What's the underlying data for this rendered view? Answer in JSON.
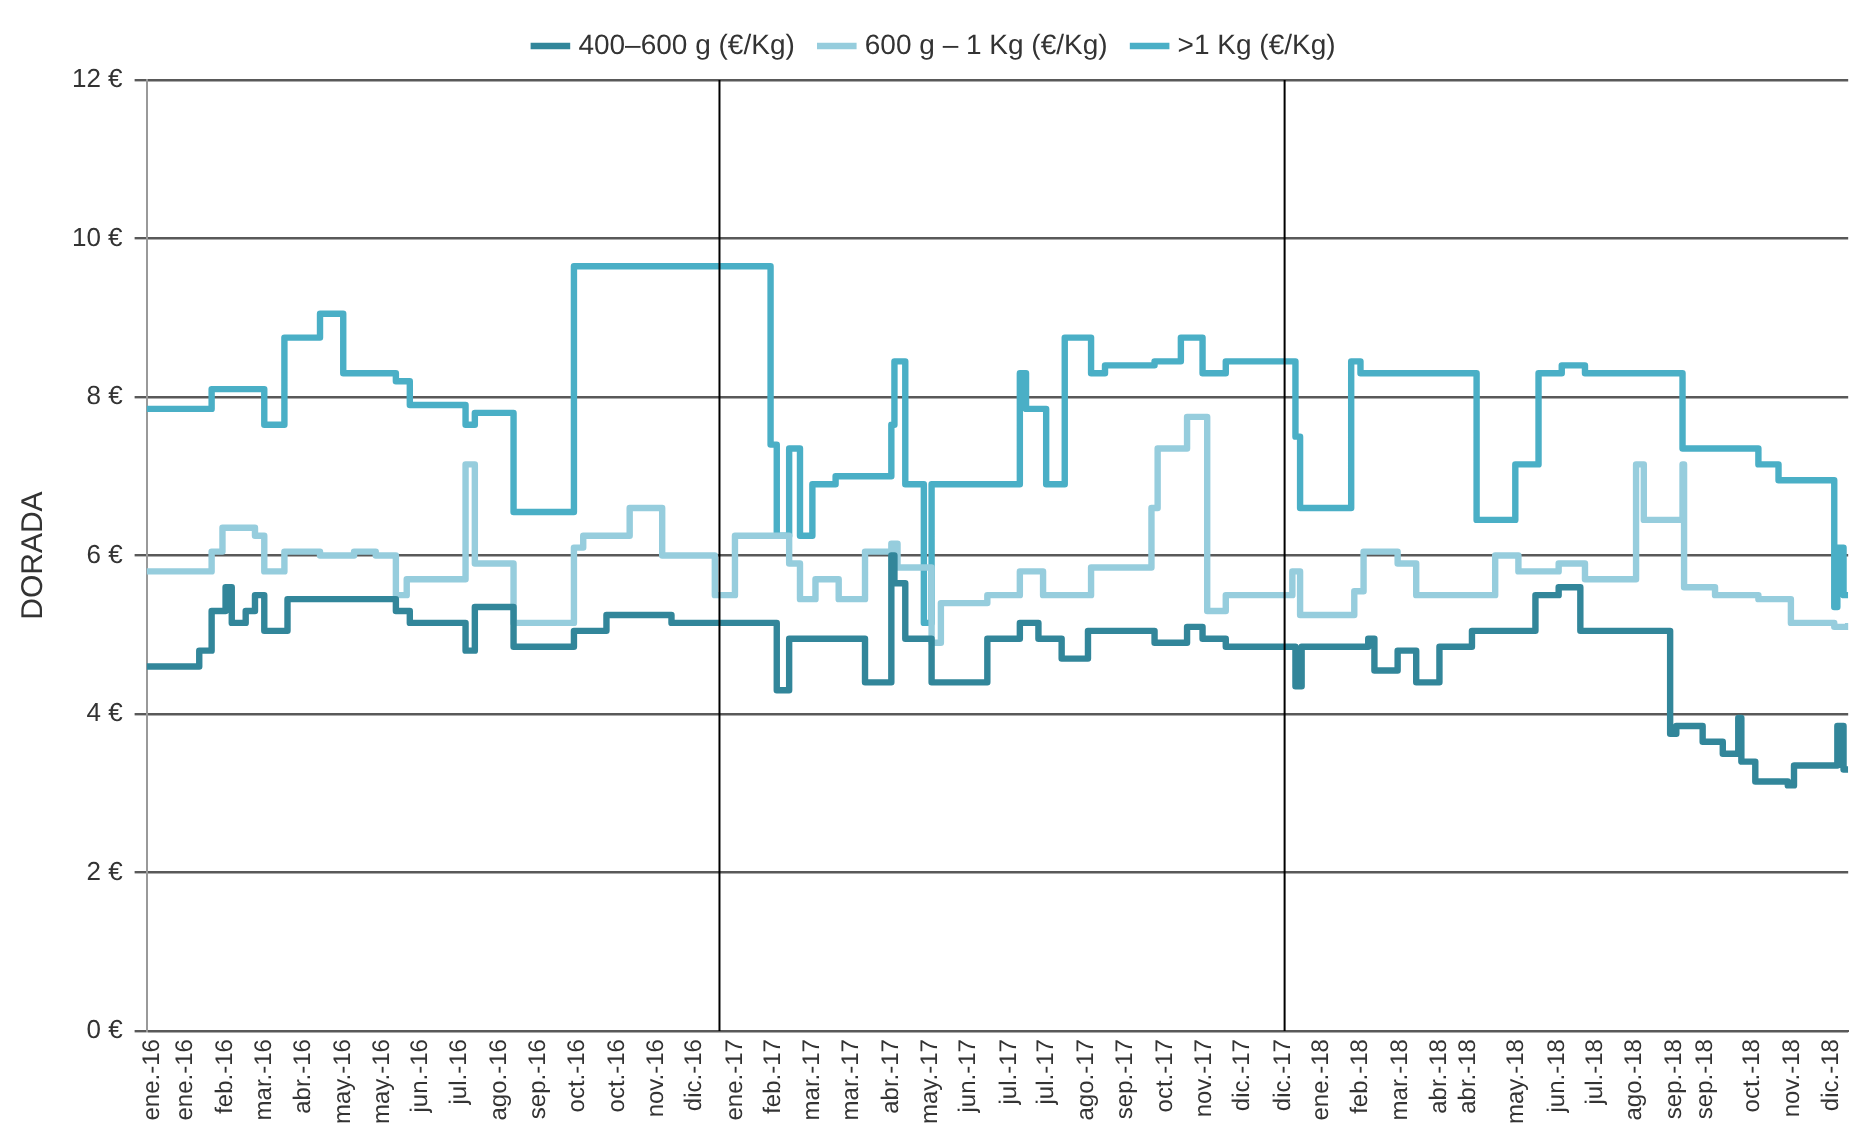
{
  "chart_data": {
    "type": "step",
    "ylabel": "DORADA",
    "legend": "top",
    "grid": "y",
    "xlim": [
      "2015-12-28",
      "2018-12-31"
    ],
    "ylim": [
      0,
      12
    ],
    "yticks": [
      {
        "value": 0,
        "label": "0 €"
      },
      {
        "value": 2,
        "label": "2 €"
      },
      {
        "value": 4,
        "label": "4 €"
      },
      {
        "value": 6,
        "label": "6 €"
      },
      {
        "value": 8,
        "label": "8 €"
      },
      {
        "value": 10,
        "label": "10 €"
      },
      {
        "value": 12,
        "label": "12 €"
      }
    ],
    "xticks": [
      {
        "value": "2016-01-01",
        "label": "ene.-16"
      },
      {
        "value": "2016-01-22",
        "label": "ene.-16"
      },
      {
        "value": "2016-02-17",
        "label": "feb.-16"
      },
      {
        "value": "2016-03-13",
        "label": "mar.-16"
      },
      {
        "value": "2016-04-07",
        "label": "abr.-16"
      },
      {
        "value": "2016-05-03",
        "label": "may.-16"
      },
      {
        "value": "2016-05-28",
        "label": "may.-16"
      },
      {
        "value": "2016-06-22",
        "label": "jun.-16"
      },
      {
        "value": "2016-07-17",
        "label": "jul.-16"
      },
      {
        "value": "2016-08-12",
        "label": "ago.-16"
      },
      {
        "value": "2016-09-06",
        "label": "sep.-16"
      },
      {
        "value": "2016-10-01",
        "label": "oct.-16"
      },
      {
        "value": "2016-10-27",
        "label": "oct.-16"
      },
      {
        "value": "2016-11-21",
        "label": "nov.-16"
      },
      {
        "value": "2016-12-16",
        "label": "dic.-16"
      },
      {
        "value": "2017-01-11",
        "label": "ene.-17"
      },
      {
        "value": "2017-02-05",
        "label": "feb.-17"
      },
      {
        "value": "2017-03-02",
        "label": "mar.-17"
      },
      {
        "value": "2017-03-27",
        "label": "mar.-17"
      },
      {
        "value": "2017-04-22",
        "label": "abr.-17"
      },
      {
        "value": "2017-05-17",
        "label": "may.-17"
      },
      {
        "value": "2017-06-11",
        "label": "jun.-17"
      },
      {
        "value": "2017-07-07",
        "label": "jul.-17"
      },
      {
        "value": "2017-07-31",
        "label": "jul.-17"
      },
      {
        "value": "2017-08-26",
        "label": "ago.-17"
      },
      {
        "value": "2017-09-20",
        "label": "sep.-17"
      },
      {
        "value": "2017-10-16",
        "label": "oct.-17"
      },
      {
        "value": "2017-11-10",
        "label": "nov.-17"
      },
      {
        "value": "2017-12-05",
        "label": "dic.-17"
      },
      {
        "value": "2017-12-31",
        "label": "dic.-17"
      },
      {
        "value": "2018-01-25",
        "label": "ene.-18"
      },
      {
        "value": "2018-02-19",
        "label": "feb.-18"
      },
      {
        "value": "2018-03-17",
        "label": "mar.-18"
      },
      {
        "value": "2018-04-11",
        "label": "abr.-18"
      },
      {
        "value": "2018-04-30",
        "label": "abr.-18"
      },
      {
        "value": "2018-05-31",
        "label": "may.-18"
      },
      {
        "value": "2018-06-26",
        "label": "jun.-18"
      },
      {
        "value": "2018-07-21",
        "label": "jul.-18"
      },
      {
        "value": "2018-08-15",
        "label": "ago.-18"
      },
      {
        "value": "2018-09-10",
        "label": "sep.-18"
      },
      {
        "value": "2018-09-30",
        "label": "sep.-18"
      },
      {
        "value": "2018-10-30",
        "label": "oct.-18"
      },
      {
        "value": "2018-11-25",
        "label": "nov.-18"
      },
      {
        "value": "2018-12-20",
        "label": "dic.-18"
      }
    ],
    "ref_lines": [
      {
        "axis": "x",
        "value": "2017-01-01",
        "label": null,
        "color": "#000000"
      },
      {
        "axis": "x",
        "value": "2018-01-01",
        "label": null,
        "color": "#000000"
      }
    ],
    "series": [
      {
        "name": "400–600 g (€/Kg)",
        "color": "#32869a",
        "x": [
          "2015-12-28",
          "2016-01-31",
          "2016-02-08",
          "2016-02-17",
          "2016-02-21",
          "2016-03-01",
          "2016-03-07",
          "2016-03-13",
          "2016-03-28",
          "2016-06-06",
          "2016-06-15",
          "2016-07-21",
          "2016-07-27",
          "2016-08-21",
          "2016-09-29",
          "2016-10-20",
          "2016-12-01",
          "2017-02-07",
          "2017-02-15",
          "2017-04-05",
          "2017-04-22",
          "2017-04-24",
          "2017-05-01",
          "2017-05-18",
          "2017-06-23",
          "2017-07-14",
          "2017-07-26",
          "2017-08-10",
          "2017-08-27",
          "2017-10-09",
          "2017-10-30",
          "2017-11-09",
          "2017-11-24",
          "2018-01-08",
          "2018-01-12",
          "2018-02-24",
          "2018-02-28",
          "2018-03-15",
          "2018-03-27",
          "2018-04-11",
          "2018-05-02",
          "2018-06-12",
          "2018-06-27",
          "2018-07-11",
          "2018-09-07",
          "2018-09-11",
          "2018-09-28",
          "2018-10-11",
          "2018-10-21",
          "2018-10-23",
          "2018-11-01",
          "2018-11-22",
          "2018-11-26",
          "2018-12-24",
          "2018-12-28",
          "2018-12-31"
        ],
        "values": [
          4.6,
          4.8,
          5.3,
          5.6,
          5.15,
          5.3,
          5.5,
          5.05,
          5.45,
          5.3,
          5.15,
          4.8,
          5.35,
          4.85,
          5.05,
          5.25,
          5.15,
          4.3,
          4.95,
          4.4,
          6.0,
          5.65,
          4.95,
          4.4,
          4.95,
          5.15,
          4.95,
          4.7,
          5.05,
          4.9,
          5.1,
          4.95,
          4.85,
          4.35,
          4.85,
          4.95,
          4.55,
          4.8,
          4.4,
          4.85,
          5.05,
          5.5,
          5.6,
          5.05,
          3.75,
          3.85,
          3.65,
          3.5,
          3.95,
          3.4,
          3.15,
          3.1,
          3.35,
          3.85,
          3.3,
          3.3
        ]
      },
      {
        "name": "600 g – 1 Kg (€/Kg)",
        "color": "#96cddd",
        "x": [
          "2015-12-28",
          "2016-02-08",
          "2016-02-15",
          "2016-03-07",
          "2016-03-13",
          "2016-03-26",
          "2016-04-18",
          "2016-05-10",
          "2016-05-24",
          "2016-06-06",
          "2016-06-13",
          "2016-07-21",
          "2016-07-27",
          "2016-08-21",
          "2016-09-29",
          "2016-10-05",
          "2016-11-04",
          "2016-11-25",
          "2016-12-29",
          "2017-01-11",
          "2017-02-15",
          "2017-02-22",
          "2017-03-04",
          "2017-03-19",
          "2017-04-05",
          "2017-04-22",
          "2017-04-26",
          "2017-05-18",
          "2017-05-24",
          "2017-06-23",
          "2017-07-14",
          "2017-07-29",
          "2017-08-29",
          "2017-10-07",
          "2017-10-11",
          "2017-10-30",
          "2017-11-12",
          "2017-11-24",
          "2018-01-06",
          "2018-01-11",
          "2018-02-15",
          "2018-02-21",
          "2018-03-15",
          "2018-03-27",
          "2018-05-17",
          "2018-06-01",
          "2018-06-27",
          "2018-07-14",
          "2018-08-16",
          "2018-08-21",
          "2018-09-15",
          "2018-09-16",
          "2018-10-06",
          "2018-11-03",
          "2018-11-24",
          "2018-12-22",
          "2018-12-31"
        ],
        "values": [
          5.8,
          6.05,
          6.35,
          6.25,
          5.8,
          6.05,
          6.0,
          6.05,
          6.0,
          5.5,
          5.7,
          7.15,
          5.9,
          5.15,
          6.1,
          6.25,
          6.6,
          6.0,
          5.5,
          6.25,
          5.9,
          5.45,
          5.7,
          5.45,
          6.05,
          6.15,
          5.85,
          4.9,
          5.4,
          5.5,
          5.8,
          5.5,
          5.85,
          6.6,
          7.35,
          7.75,
          5.3,
          5.5,
          5.8,
          5.25,
          5.55,
          6.05,
          5.9,
          5.5,
          6.0,
          5.8,
          5.9,
          5.7,
          7.15,
          6.45,
          7.15,
          5.6,
          5.5,
          5.45,
          5.15,
          5.1,
          5.15
        ]
      },
      {
        "name": ">1 Kg (€/Kg)",
        "color": "#4aafc6",
        "x": [
          "2015-12-28",
          "2016-02-08",
          "2016-03-13",
          "2016-03-26",
          "2016-04-18",
          "2016-05-03",
          "2016-06-06",
          "2016-06-15",
          "2016-07-21",
          "2016-07-27",
          "2016-08-21",
          "2016-09-29",
          "2017-02-03",
          "2017-02-07",
          "2017-02-15",
          "2017-02-22",
          "2017-03-02",
          "2017-03-17",
          "2017-04-22",
          "2017-04-24",
          "2017-05-01",
          "2017-05-13",
          "2017-05-18",
          "2017-07-14",
          "2017-07-18",
          "2017-07-31",
          "2017-08-12",
          "2017-08-29",
          "2017-09-07",
          "2017-10-09",
          "2017-10-26",
          "2017-11-09",
          "2017-11-24",
          "2018-01-08",
          "2018-01-11",
          "2018-02-13",
          "2018-02-19",
          "2018-05-05",
          "2018-05-30",
          "2018-06-14",
          "2018-06-29",
          "2018-07-14",
          "2018-09-15",
          "2018-11-03",
          "2018-11-16",
          "2018-12-22",
          "2018-12-24",
          "2018-12-28",
          "2018-12-31"
        ],
        "values": [
          7.85,
          8.1,
          7.65,
          8.75,
          9.05,
          8.3,
          8.2,
          7.9,
          7.65,
          7.8,
          6.55,
          9.65,
          7.4,
          6.25,
          7.35,
          6.25,
          6.9,
          7.0,
          7.65,
          8.45,
          6.9,
          5.15,
          6.9,
          8.3,
          7.85,
          6.9,
          8.75,
          8.3,
          8.4,
          8.45,
          8.75,
          8.3,
          8.45,
          7.5,
          6.6,
          8.45,
          8.3,
          6.45,
          7.15,
          8.3,
          8.4,
          8.3,
          7.35,
          7.15,
          6.95,
          5.35,
          6.1,
          5.5,
          5.5
        ]
      }
    ]
  }
}
